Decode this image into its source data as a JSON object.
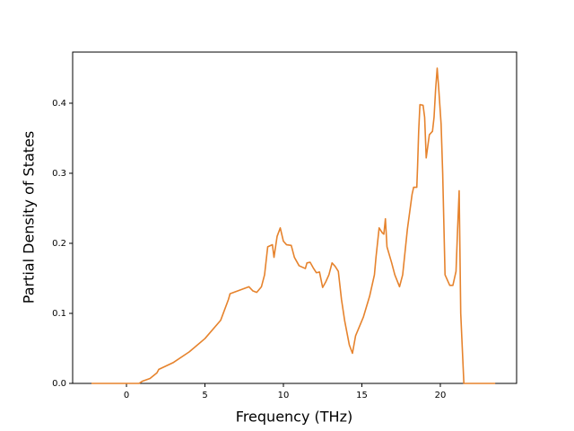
{
  "chart_data": {
    "type": "line",
    "x_label": "Frequency (THz)",
    "y_label": "Partial Density of States",
    "x": [
      -2.23,
      0.5,
      0.8,
      1.0,
      1.5,
      1.94,
      2.06,
      3,
      4,
      5,
      6,
      6.5,
      6.6,
      7.8,
      8.06,
      8.3,
      8.6,
      8.8,
      9.0,
      9.3,
      9.4,
      9.6,
      9.8,
      10.0,
      10.2,
      10.5,
      10.7,
      11.0,
      11.4,
      11.5,
      11.7,
      11.9,
      12.1,
      12.3,
      12.5,
      12.7,
      12.9,
      13.1,
      13.3,
      13.5,
      13.7,
      13.9,
      14.2,
      14.4,
      14.6,
      15.1,
      15.5,
      15.8,
      15.9,
      16.1,
      16.3,
      16.4,
      16.5,
      16.6,
      16.9,
      17.1,
      17.4,
      17.6,
      17.9,
      18.2,
      18.3,
      18.5,
      18.55,
      18.62,
      18.7,
      18.9,
      19.0,
      19.1,
      19.3,
      19.5,
      19.6,
      19.7,
      19.8,
      19.9,
      20.05,
      20.15,
      20.3,
      20.6,
      20.8,
      21.0,
      21.1,
      21.2,
      21.3,
      21.5,
      23.5
    ],
    "series": [
      {
        "color": "#e6832d",
        "values": [
          0,
          0,
          0,
          0.003,
          0.007,
          0.015,
          0.02,
          0.03,
          0.045,
          0.064,
          0.09,
          0.12,
          0.128,
          0.138,
          0.132,
          0.13,
          0.138,
          0.155,
          0.195,
          0.198,
          0.18,
          0.21,
          0.222,
          0.203,
          0.198,
          0.197,
          0.18,
          0.168,
          0.164,
          0.172,
          0.173,
          0.165,
          0.158,
          0.159,
          0.137,
          0.145,
          0.155,
          0.172,
          0.167,
          0.16,
          0.12,
          0.09,
          0.055,
          0.043,
          0.068,
          0.095,
          0.125,
          0.155,
          0.18,
          0.222,
          0.215,
          0.213,
          0.235,
          0.195,
          0.172,
          0.155,
          0.138,
          0.155,
          0.22,
          0.27,
          0.28,
          0.28,
          0.31,
          0.36,
          0.398,
          0.397,
          0.38,
          0.322,
          0.355,
          0.36,
          0.38,
          0.42,
          0.45,
          0.42,
          0.37,
          0.3,
          0.155,
          0.14,
          0.14,
          0.16,
          0.22,
          0.275,
          0.1,
          0,
          0
        ]
      }
    ],
    "xlim": [
      -3.43,
      24.86
    ],
    "ylim": [
      0,
      0.473
    ],
    "xticks": [
      0,
      5,
      10,
      15,
      20
    ],
    "yticks": [
      {
        "value": 0,
        "label": "0.0"
      },
      0.1,
      0.2,
      0.3,
      0.4
    ]
  }
}
